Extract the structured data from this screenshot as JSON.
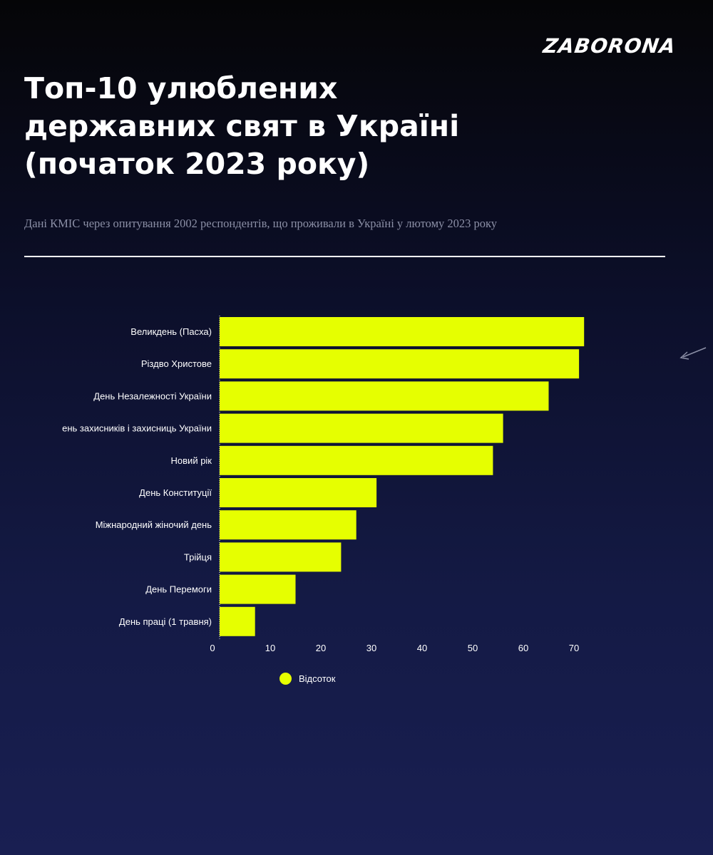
{
  "brand": {
    "logo_text": "ZABORONA"
  },
  "header": {
    "title_lines": [
      "Топ-10 улюблених",
      "державних свят в Україні",
      "(початок 2023 року)"
    ],
    "subtitle": "Дані КМІС через опитування 2002 респондентів, що проживали в Україні у лютому 2023 року"
  },
  "colors": {
    "bar": "#e6ff00",
    "text": "#ffffff",
    "subtitle": "#8b8fa6"
  },
  "chart_data": {
    "type": "bar",
    "orientation": "horizontal",
    "categories": [
      "Великдень (Пасха)",
      "Різдво Христове",
      "День Незалежності України",
      "ень захисників і захисниць України",
      "Новий рік",
      "День Конституції",
      "Міжнародний жіночий день",
      "Трійця",
      "День Перемоги",
      "День праці (1 травня)"
    ],
    "series": [
      {
        "name": "Відсоток",
        "values": [
          72,
          71,
          65,
          56,
          54,
          31,
          27,
          24,
          15,
          7
        ]
      }
    ],
    "xlim": [
      0,
      75
    ],
    "xticks": [
      0,
      10,
      20,
      30,
      40,
      50,
      60,
      70
    ],
    "grid": false,
    "legend": "bottom"
  }
}
